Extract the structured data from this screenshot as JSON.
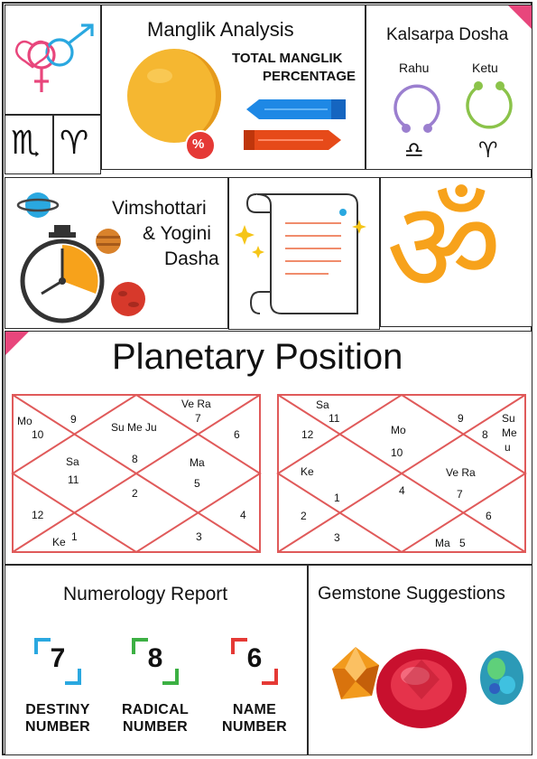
{
  "zodiac": {
    "gender_symbol": "⚤",
    "scorpio": "♏",
    "aries": "♈"
  },
  "manglik": {
    "title": "Manglik Analysis",
    "subtitle_line1": "TOTAL MANGLIK",
    "subtitle_line2": "PERCENTAGE",
    "percent_symbol": "%"
  },
  "kalsarpa": {
    "title": "Kalsarpa Dosha",
    "rahu_label": "Rahu",
    "ketu_label": "Ketu",
    "libra": "♎",
    "aries": "♈"
  },
  "dasha": {
    "line1": "Vimshottari",
    "line2": "& Yogini",
    "line3": "Dasha"
  },
  "om": {
    "symbol": "ॐ"
  },
  "planetary": {
    "title": "Planetary Position",
    "chart_left": [
      {
        "id": "l1",
        "text": "Mo"
      },
      {
        "id": "l2",
        "text": "10"
      },
      {
        "id": "l3",
        "text": "9"
      },
      {
        "id": "l4",
        "text": "Su Me Ju"
      },
      {
        "id": "l5",
        "text": "Ve Ra"
      },
      {
        "id": "l6",
        "text": "7"
      },
      {
        "id": "l7",
        "text": "6"
      },
      {
        "id": "l8",
        "text": "Sa"
      },
      {
        "id": "l9",
        "text": "11"
      },
      {
        "id": "l10",
        "text": "8"
      },
      {
        "id": "l11",
        "text": "Ma"
      },
      {
        "id": "l12",
        "text": "5"
      },
      {
        "id": "l13",
        "text": "2"
      },
      {
        "id": "l14",
        "text": "12"
      },
      {
        "id": "l15",
        "text": "4"
      },
      {
        "id": "l16",
        "text": "Ke"
      },
      {
        "id": "l17",
        "text": "1"
      },
      {
        "id": "l18",
        "text": "3"
      }
    ],
    "chart_right": [
      {
        "id": "r1",
        "text": "Sa"
      },
      {
        "id": "r2",
        "text": "11"
      },
      {
        "id": "r3",
        "text": "12"
      },
      {
        "id": "r4",
        "text": "Mo"
      },
      {
        "id": "r5",
        "text": "10"
      },
      {
        "id": "r6",
        "text": "9"
      },
      {
        "id": "r7",
        "text": "Su"
      },
      {
        "id": "r8",
        "text": "8"
      },
      {
        "id": "r9",
        "text": "Me"
      },
      {
        "id": "r10",
        "text": "u"
      },
      {
        "id": "r11",
        "text": "Ke"
      },
      {
        "id": "r12",
        "text": "Ve Ra"
      },
      {
        "id": "r13",
        "text": "4"
      },
      {
        "id": "r14",
        "text": "1"
      },
      {
        "id": "r15",
        "text": "7"
      },
      {
        "id": "r16",
        "text": "2"
      },
      {
        "id": "r17",
        "text": "6"
      },
      {
        "id": "r18",
        "text": "3"
      },
      {
        "id": "r19",
        "text": "Ma"
      },
      {
        "id": "r20",
        "text": "5"
      }
    ]
  },
  "numerology": {
    "title": "Numerology Report",
    "items": [
      {
        "value": "7",
        "label1": "DESTINY",
        "label2": "NUMBER",
        "color": "#2aa8e0"
      },
      {
        "value": "8",
        "label1": "RADICAL",
        "label2": "NUMBER",
        "color": "#3cb043"
      },
      {
        "value": "6",
        "label1": "NAME",
        "label2": "NUMBER",
        "color": "#e53935"
      }
    ]
  },
  "gemstone": {
    "title": "Gemstone Suggestions"
  },
  "colors": {
    "accent_pink": "#e8467c",
    "chart_red": "#e05a5a",
    "om_orange": "#f7a21b",
    "ball_yellow": "#f5b731",
    "arrow_blue": "#1e88e5",
    "arrow_red": "#e64a19"
  }
}
